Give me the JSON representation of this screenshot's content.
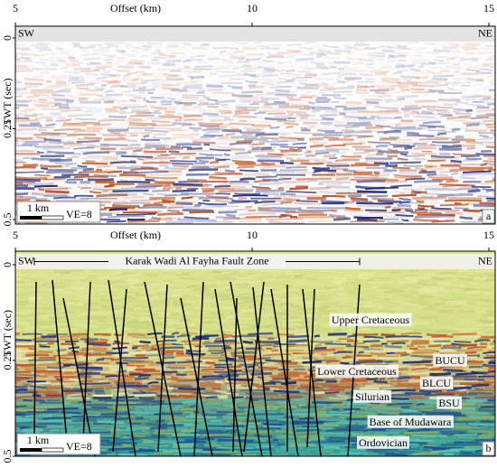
{
  "panels": [
    {
      "label": "a",
      "x_axis": {
        "title": "Offset (km)",
        "ticks": [
          5,
          10,
          15
        ]
      },
      "y_axis": {
        "title": "TWT (sec)",
        "ticks": [
          0,
          0.25,
          0.5
        ]
      },
      "left": "SW",
      "right": "NE",
      "scale": "1 km",
      "ve": "VE=8"
    },
    {
      "label": "b",
      "x_axis": {
        "title": "Offset (km)",
        "ticks": [
          5,
          10,
          15
        ]
      },
      "y_axis": {
        "title": "TWT (sec)",
        "ticks": [
          0,
          0.25,
          0.5
        ]
      },
      "left": "SW",
      "right": "NE",
      "scale": "1 km",
      "ve": "VE=8",
      "fault_zone": "Karak Wadi Al Fayha Fault Zone",
      "horizons": [
        "Upper Cretaceous",
        "BUCU",
        "Lower Cretaceous",
        "BLCU",
        "Silurian",
        "BSU",
        "Base of Mudawara",
        "Ordovician"
      ]
    }
  ]
}
